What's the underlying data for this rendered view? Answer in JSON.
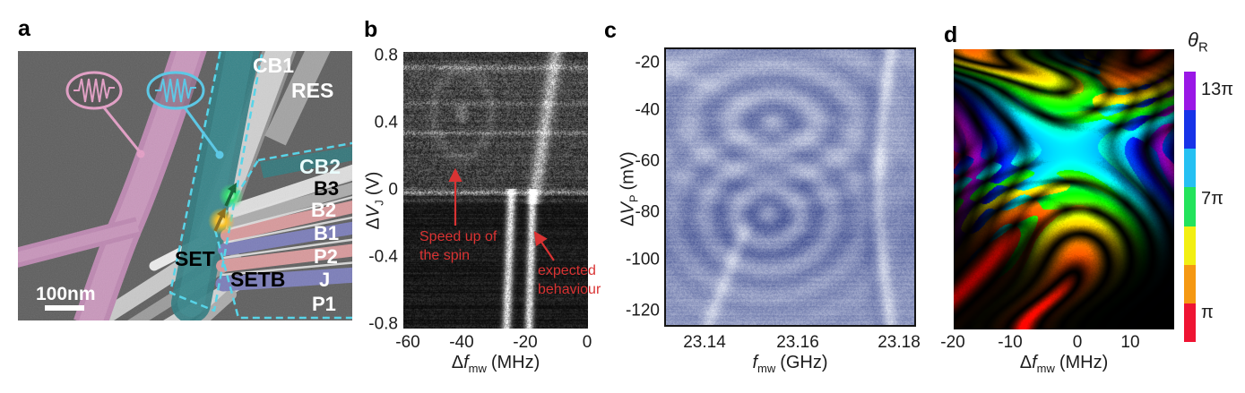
{
  "figure": {
    "panels": {
      "a": {
        "letter": "a",
        "scale_bar": "100nm",
        "labels": {
          "cb1": "CB1",
          "res": "RES",
          "cb2": "CB2",
          "b3": "B3",
          "b2": "B2",
          "b1": "B1",
          "p2": "P2",
          "j": "J",
          "p1": "P1",
          "set": "SET",
          "setb": "SETB"
        },
        "icon_colors": {
          "pink_pulse": "#e49ec6",
          "cyan_pulse": "#55c9e9",
          "green_spin": "#2ee36e",
          "yellow_spin": "#ffc21a",
          "teal_gate": "#2d7a7f",
          "salmon_gate": "#d8999b",
          "blue_gate": "#7b7db9",
          "pink_wire": "#bd87b1"
        }
      },
      "b": {
        "letter": "b",
        "y_axis": {
          "sym": "Δ",
          "var": "V",
          "sub": "J",
          "unit": "(V)",
          "ticks": [
            "0.8",
            "0.4",
            "0",
            "-0.4",
            "-0.8"
          ]
        },
        "x_axis": {
          "sym": "Δ",
          "var": "f",
          "sub": "mw",
          "unit": "(MHz)",
          "ticks": [
            "-60",
            "-40",
            "-20",
            "0"
          ]
        },
        "annotations": {
          "speed_up": {
            "line1": "Speed up of",
            "line2": "the spin"
          },
          "expected": {
            "line1": "expected",
            "line2": "behaviour"
          }
        },
        "annotation_color": "#d93333"
      },
      "c": {
        "letter": "c",
        "y_axis": {
          "sym": "Δ",
          "var": "V",
          "sub": "P",
          "unit": "(mV)",
          "ticks": [
            "-20",
            "-40",
            "-60",
            "-80",
            "-100",
            "-120"
          ]
        },
        "x_axis": {
          "sym": "",
          "var": "f",
          "sub": "mw",
          "unit": "(GHz)",
          "ticks": [
            "23.14",
            "23.16",
            "23.18"
          ]
        }
      },
      "d": {
        "letter": "d",
        "x_axis": {
          "sym": "Δ",
          "var": "f",
          "sub": "mw",
          "unit": "(MHz)",
          "ticks": [
            "-20",
            "-10",
            "0",
            "10"
          ]
        },
        "colorbar": {
          "title_var": "θ",
          "title_sub": "R",
          "tick_labels": [
            "13π",
            "7π",
            "π"
          ],
          "colors": [
            "#9a17e6",
            "#1733e8",
            "#25c0f2",
            "#23e35c",
            "#f2ef12",
            "#f59812",
            "#ef1433"
          ]
        }
      }
    }
  },
  "chart_data": [
    {
      "panel": "b",
      "type": "heatmap",
      "xlabel": "Δf_mw (MHz)",
      "ylabel": "ΔV_J (V)",
      "x_range": [
        -60,
        0
      ],
      "y_range": [
        -0.8,
        0.8
      ],
      "x_ticks": [
        -60,
        -40,
        -20,
        0
      ],
      "y_ticks": [
        0.8,
        0.4,
        0,
        -0.4,
        -0.8
      ],
      "colormap": "grayscale",
      "annotations": [
        "Speed up of the spin (arrow near -40 MHz, above 0 V)",
        "expected behaviour (arrow to bright line near -18 MHz)"
      ],
      "features": [
        "two bright near-vertical resonance lines at ≈ -26 and -19 MHz below 0 V",
        "single bright line tilting toward -11 MHz at +0.8 V",
        "diffuse fast-oscillation fringes around -40 MHz above 0 V",
        "bright horizontal noise bands near 0 V and +0.3 V"
      ]
    },
    {
      "panel": "c",
      "type": "heatmap",
      "xlabel": "f_mw (GHz)",
      "ylabel": "ΔV_P (mV)",
      "x_range": [
        23.13,
        23.185
      ],
      "y_range": [
        -128,
        -14
      ],
      "x_ticks": [
        23.14,
        23.16,
        23.18
      ],
      "y_ticks": [
        -20,
        -40,
        -60,
        -80,
        -100,
        -120
      ],
      "colormap": "blue",
      "features": [
        "two stacked chevron fringe fans centered near 23.155 GHz at ≈ -40 mV and ≈ -75 mV",
        "bright S-shaped resonance line near 23.177 GHz spanning full V range",
        "bright arc sweeping down-left below -95 mV"
      ]
    },
    {
      "panel": "d",
      "type": "heatmap",
      "xlabel": "Δf_mw (MHz)",
      "ylabel": "",
      "x_range": [
        -20,
        17
      ],
      "x_ticks": [
        -20,
        -10,
        0,
        10
      ],
      "colorbar_label": "θ_R",
      "colorbar_ticks": [
        "13π",
        "7π",
        "π"
      ],
      "colorbar_range": [
        "π",
        "13π"
      ],
      "colormap": "cyclic rainbow (red=π → purple=13π) on black",
      "features": [
        "simulated Rabi rotation angle map",
        "cyan X-shaped crossing at center ≈ 9π",
        "yellow lobe above and orange/red lobe below along S-shaped resonance",
        "dim blue/purple side fringes at large detuning"
      ]
    }
  ]
}
